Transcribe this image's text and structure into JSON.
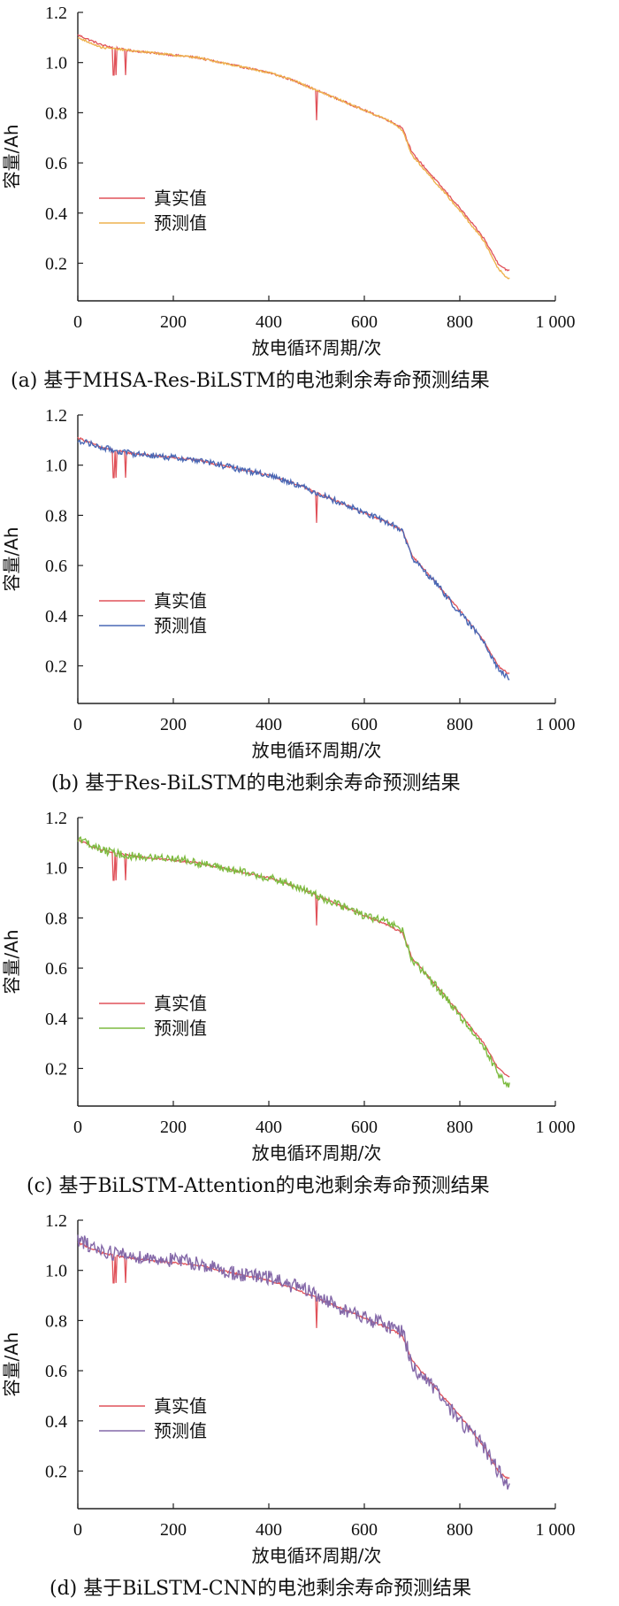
{
  "chart_data": [
    {
      "type": "line",
      "caption": "(a)  基于MHSA-Res-BiLSTM的电池剩余寿命预测结果",
      "xlabel": "放电循环周期/次",
      "ylabel": "容量/Ah",
      "xlim": [
        0,
        1000
      ],
      "ylim": [
        0.05,
        1.2
      ],
      "xticks": [
        "0",
        "200",
        "400",
        "600",
        "800",
        "1 000"
      ],
      "xtick_values": [
        0,
        200,
        400,
        600,
        800,
        1000
      ],
      "yticks": [
        "0.2",
        "0.4",
        "0.6",
        "0.8",
        "1.0",
        "1.2"
      ],
      "ytick_values": [
        0.2,
        0.4,
        0.6,
        0.8,
        1.0,
        1.2
      ],
      "legend_position": "lower-left",
      "series": [
        {
          "name": "真实值",
          "color": "#e0525a"
        },
        {
          "name": "预测值",
          "color": "#eeb24e"
        }
      ],
      "x": [
        0,
        50,
        100,
        150,
        200,
        250,
        300,
        350,
        400,
        450,
        500,
        550,
        600,
        650,
        680,
        700,
        750,
        800,
        850,
        880,
        900
      ],
      "true_values": [
        1.11,
        1.07,
        1.05,
        1.04,
        1.03,
        1.02,
        1.0,
        0.98,
        0.96,
        0.93,
        0.89,
        0.85,
        0.81,
        0.77,
        0.74,
        0.64,
        0.53,
        0.42,
        0.3,
        0.2,
        0.17
      ],
      "pred_values": [
        1.1,
        1.06,
        1.05,
        1.04,
        1.03,
        1.02,
        1.0,
        0.98,
        0.96,
        0.93,
        0.89,
        0.85,
        0.81,
        0.77,
        0.73,
        0.63,
        0.52,
        0.41,
        0.29,
        0.18,
        0.14
      ]
    },
    {
      "type": "line",
      "caption": "(b)  基于Res-BiLSTM的电池剩余寿命预测结果",
      "xlabel": "放电循环周期/次",
      "ylabel": "容量/Ah",
      "xlim": [
        0,
        1000
      ],
      "ylim": [
        0.05,
        1.2
      ],
      "xticks": [
        "0",
        "200",
        "400",
        "600",
        "800",
        "1 000"
      ],
      "xtick_values": [
        0,
        200,
        400,
        600,
        800,
        1000
      ],
      "yticks": [
        "0.2",
        "0.4",
        "0.6",
        "0.8",
        "1.0",
        "1.2"
      ],
      "ytick_values": [
        0.2,
        0.4,
        0.6,
        0.8,
        1.0,
        1.2
      ],
      "legend_position": "lower-left",
      "series": [
        {
          "name": "真实值",
          "color": "#e0525a"
        },
        {
          "name": "预测值",
          "color": "#4a68b5"
        }
      ],
      "x": [
        0,
        50,
        100,
        150,
        200,
        250,
        300,
        350,
        400,
        450,
        500,
        550,
        600,
        650,
        680,
        700,
        750,
        800,
        850,
        880,
        900
      ],
      "true_values": [
        1.11,
        1.07,
        1.05,
        1.04,
        1.03,
        1.02,
        1.0,
        0.98,
        0.96,
        0.93,
        0.89,
        0.85,
        0.81,
        0.77,
        0.74,
        0.64,
        0.53,
        0.42,
        0.3,
        0.2,
        0.17
      ],
      "pred_values": [
        1.1,
        1.07,
        1.05,
        1.04,
        1.03,
        1.02,
        1.0,
        0.98,
        0.96,
        0.93,
        0.89,
        0.85,
        0.81,
        0.77,
        0.74,
        0.63,
        0.53,
        0.41,
        0.3,
        0.19,
        0.15
      ]
    },
    {
      "type": "line",
      "caption": "(c)  基于BiLSTM-Attention的电池剩余寿命预测结果",
      "xlabel": "放电循环周期/次",
      "ylabel": "容量/Ah",
      "xlim": [
        0,
        1000
      ],
      "ylim": [
        0.05,
        1.2
      ],
      "xticks": [
        "0",
        "200",
        "400",
        "600",
        "800",
        "1 000"
      ],
      "xtick_values": [
        0,
        200,
        400,
        600,
        800,
        1000
      ],
      "yticks": [
        "0.2",
        "0.4",
        "0.6",
        "0.8",
        "1.0",
        "1.2"
      ],
      "ytick_values": [
        0.2,
        0.4,
        0.6,
        0.8,
        1.0,
        1.2
      ],
      "legend_position": "lower-left",
      "series": [
        {
          "name": "真实值",
          "color": "#e0525a"
        },
        {
          "name": "预测值",
          "color": "#7dbb40"
        }
      ],
      "x": [
        0,
        50,
        100,
        150,
        200,
        250,
        300,
        350,
        400,
        450,
        500,
        550,
        600,
        650,
        680,
        700,
        750,
        800,
        850,
        880,
        900
      ],
      "true_values": [
        1.11,
        1.07,
        1.05,
        1.04,
        1.03,
        1.02,
        1.0,
        0.98,
        0.96,
        0.93,
        0.89,
        0.85,
        0.81,
        0.77,
        0.74,
        0.64,
        0.53,
        0.42,
        0.3,
        0.2,
        0.17
      ],
      "pred_values": [
        1.12,
        1.07,
        1.05,
        1.04,
        1.04,
        1.02,
        1.0,
        0.98,
        0.96,
        0.93,
        0.89,
        0.85,
        0.81,
        0.78,
        0.75,
        0.63,
        0.53,
        0.41,
        0.29,
        0.18,
        0.13
      ]
    },
    {
      "type": "line",
      "caption": "(d)  基于BiLSTM-CNN的电池剩余寿命预测结果",
      "xlabel": "放电循环周期/次",
      "ylabel": "容量/Ah",
      "xlim": [
        0,
        1000
      ],
      "ylim": [
        0.05,
        1.2
      ],
      "xticks": [
        "0",
        "200",
        "400",
        "600",
        "800",
        "1 000"
      ],
      "xtick_values": [
        0,
        200,
        400,
        600,
        800,
        1000
      ],
      "yticks": [
        "0.2",
        "0.4",
        "0.6",
        "0.8",
        "1.0",
        "1.2"
      ],
      "ytick_values": [
        0.2,
        0.4,
        0.6,
        0.8,
        1.0,
        1.2
      ],
      "legend_position": "lower-left",
      "series": [
        {
          "name": "真实值",
          "color": "#e0525a"
        },
        {
          "name": "预测值",
          "color": "#8468a8"
        }
      ],
      "x": [
        0,
        50,
        100,
        150,
        200,
        250,
        300,
        350,
        400,
        450,
        500,
        550,
        600,
        650,
        680,
        700,
        750,
        800,
        850,
        880,
        900
      ],
      "true_values": [
        1.11,
        1.07,
        1.05,
        1.04,
        1.03,
        1.02,
        1.0,
        0.98,
        0.96,
        0.93,
        0.89,
        0.85,
        0.81,
        0.77,
        0.74,
        0.64,
        0.53,
        0.42,
        0.3,
        0.2,
        0.17
      ],
      "pred_values": [
        1.12,
        1.08,
        1.06,
        1.05,
        1.04,
        1.03,
        1.0,
        0.98,
        0.97,
        0.94,
        0.9,
        0.85,
        0.81,
        0.78,
        0.76,
        0.62,
        0.52,
        0.4,
        0.3,
        0.2,
        0.15
      ]
    }
  ]
}
